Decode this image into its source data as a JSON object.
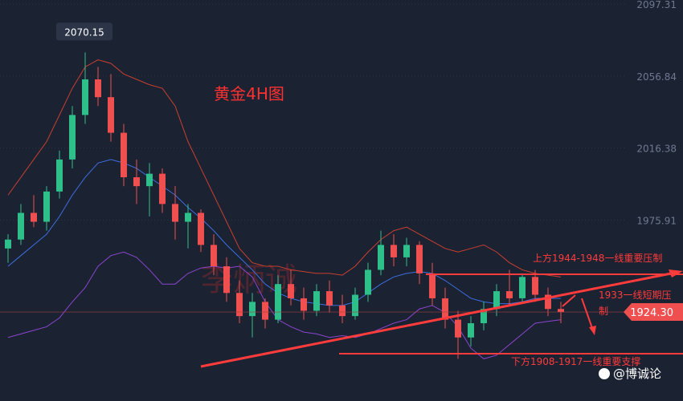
{
  "chart_data": {
    "type": "candlestick",
    "title": "黄金4H图",
    "categories": [
      null,
      null,
      null,
      null,
      null,
      null,
      null,
      null,
      null,
      null,
      null,
      null,
      null,
      null,
      null,
      null,
      null,
      null,
      null,
      null,
      null,
      null,
      null,
      null,
      null,
      null,
      null,
      null,
      null,
      null,
      null,
      null,
      null,
      null,
      null,
      null,
      null,
      null,
      null,
      null,
      null,
      null,
      null,
      null
    ],
    "open": [
      1960,
      1965,
      1980,
      1975,
      1992,
      2010,
      2035,
      2055,
      2045,
      2025,
      2000,
      1995,
      2002,
      1985,
      1975,
      1980,
      1962,
      1950,
      1935,
      1922,
      1930,
      1920,
      1940,
      1932,
      1925,
      1936,
      1928,
      1922,
      1934,
      1948,
      1962,
      1955,
      1962,
      1946,
      1932,
      1920,
      1910,
      1918,
      1926,
      1936,
      1932,
      1944,
      1934,
      1926
    ],
    "high": [
      1968,
      1985,
      1990,
      1995,
      2015,
      2040,
      2070.15,
      2062,
      2058,
      2030,
      2010,
      2008,
      2005,
      1995,
      1985,
      1982,
      1968,
      1955,
      1942,
      1935,
      1932,
      1945,
      1948,
      1938,
      1940,
      1942,
      1934,
      1938,
      1952,
      1970,
      1968,
      1966,
      1964,
      1952,
      1938,
      1925,
      1922,
      1930,
      1940,
      1948,
      1946,
      1948,
      1938,
      1930
    ],
    "low": [
      1952,
      1962,
      1972,
      1970,
      1988,
      2005,
      2030,
      2040,
      2020,
      1995,
      1985,
      1978,
      1980,
      1965,
      1960,
      1958,
      1945,
      1930,
      1918,
      1910,
      1915,
      1918,
      1928,
      1920,
      1922,
      1924,
      1918,
      1920,
      1930,
      1945,
      1950,
      1950,
      1940,
      1928,
      1915,
      1898,
      1905,
      1914,
      1922,
      1928,
      1930,
      1930,
      1922,
      1918
    ],
    "close": [
      1965,
      1980,
      1975,
      1992,
      2010,
      2035,
      2055,
      2045,
      2025,
      2000,
      1995,
      2002,
      1985,
      1975,
      1980,
      1962,
      1950,
      1935,
      1922,
      1930,
      1920,
      1940,
      1932,
      1925,
      1936,
      1928,
      1922,
      1934,
      1948,
      1962,
      1955,
      1962,
      1946,
      1932,
      1920,
      1910,
      1918,
      1926,
      1936,
      1932,
      1944,
      1934,
      1926,
      1924.3
    ],
    "up_color": "#2fbf8a",
    "down_color": "#ef4f4f",
    "bands": [
      {
        "color": "#c8402f",
        "values": [
          1990,
          2000,
          2010,
          2020,
          2035,
          2050,
          2062,
          2066,
          2064,
          2058,
          2055,
          2052,
          2050,
          2040,
          2020,
          2005,
          1990,
          1975,
          1960,
          1952,
          1950,
          1950,
          1948,
          1947,
          1946,
          1946,
          1945,
          1950,
          1958,
          1965,
          1970,
          1972,
          1968,
          1964,
          1960,
          1958,
          1960,
          1962,
          1958,
          1952,
          1948,
          1946,
          1945,
          1944
        ]
      },
      {
        "color": "#3d6fe0",
        "values": [
          1950,
          1956,
          1962,
          1968,
          1978,
          1990,
          2000,
          2008,
          2010,
          2008,
          2005,
          2000,
          1995,
          1990,
          1983,
          1977,
          1970,
          1962,
          1955,
          1948,
          1940,
          1935,
          1932,
          1930,
          1929,
          1928,
          1928,
          1930,
          1935,
          1940,
          1944,
          1946,
          1947,
          1946,
          1942,
          1937,
          1932,
          1930,
          1929,
          1929,
          1930,
          1932,
          1932,
          1932
        ]
      },
      {
        "color": "#8b45d0",
        "values": [
          1910,
          1912,
          1914,
          1916,
          1921,
          1930,
          1938,
          1950,
          1956,
          1958,
          1955,
          1948,
          1940,
          1940,
          1946,
          1949,
          1950,
          1949,
          1950,
          1944,
          1930,
          1920,
          1916,
          1913,
          1912,
          1910,
          1911,
          1910,
          1912,
          1915,
          1918,
          1920,
          1926,
          1928,
          1924,
          1916,
          1904,
          1898,
          1900,
          1906,
          1912,
          1918,
          1919,
          1920
        ]
      }
    ],
    "ylim": [
      1874.3,
      2099.6
    ],
    "yticks": [
      1975.91,
      2016.38,
      2056.84,
      2097.31
    ],
    "grid": true,
    "last_price": {
      "value": 1924.3,
      "label": "1924.30"
    },
    "annotations": [
      "上方1944-1948一线重要压制",
      "1933一线短期压制",
      "下方1908-1917一线重要支撑"
    ],
    "watermark": "李炳诚",
    "handle": "@博诚论"
  }
}
